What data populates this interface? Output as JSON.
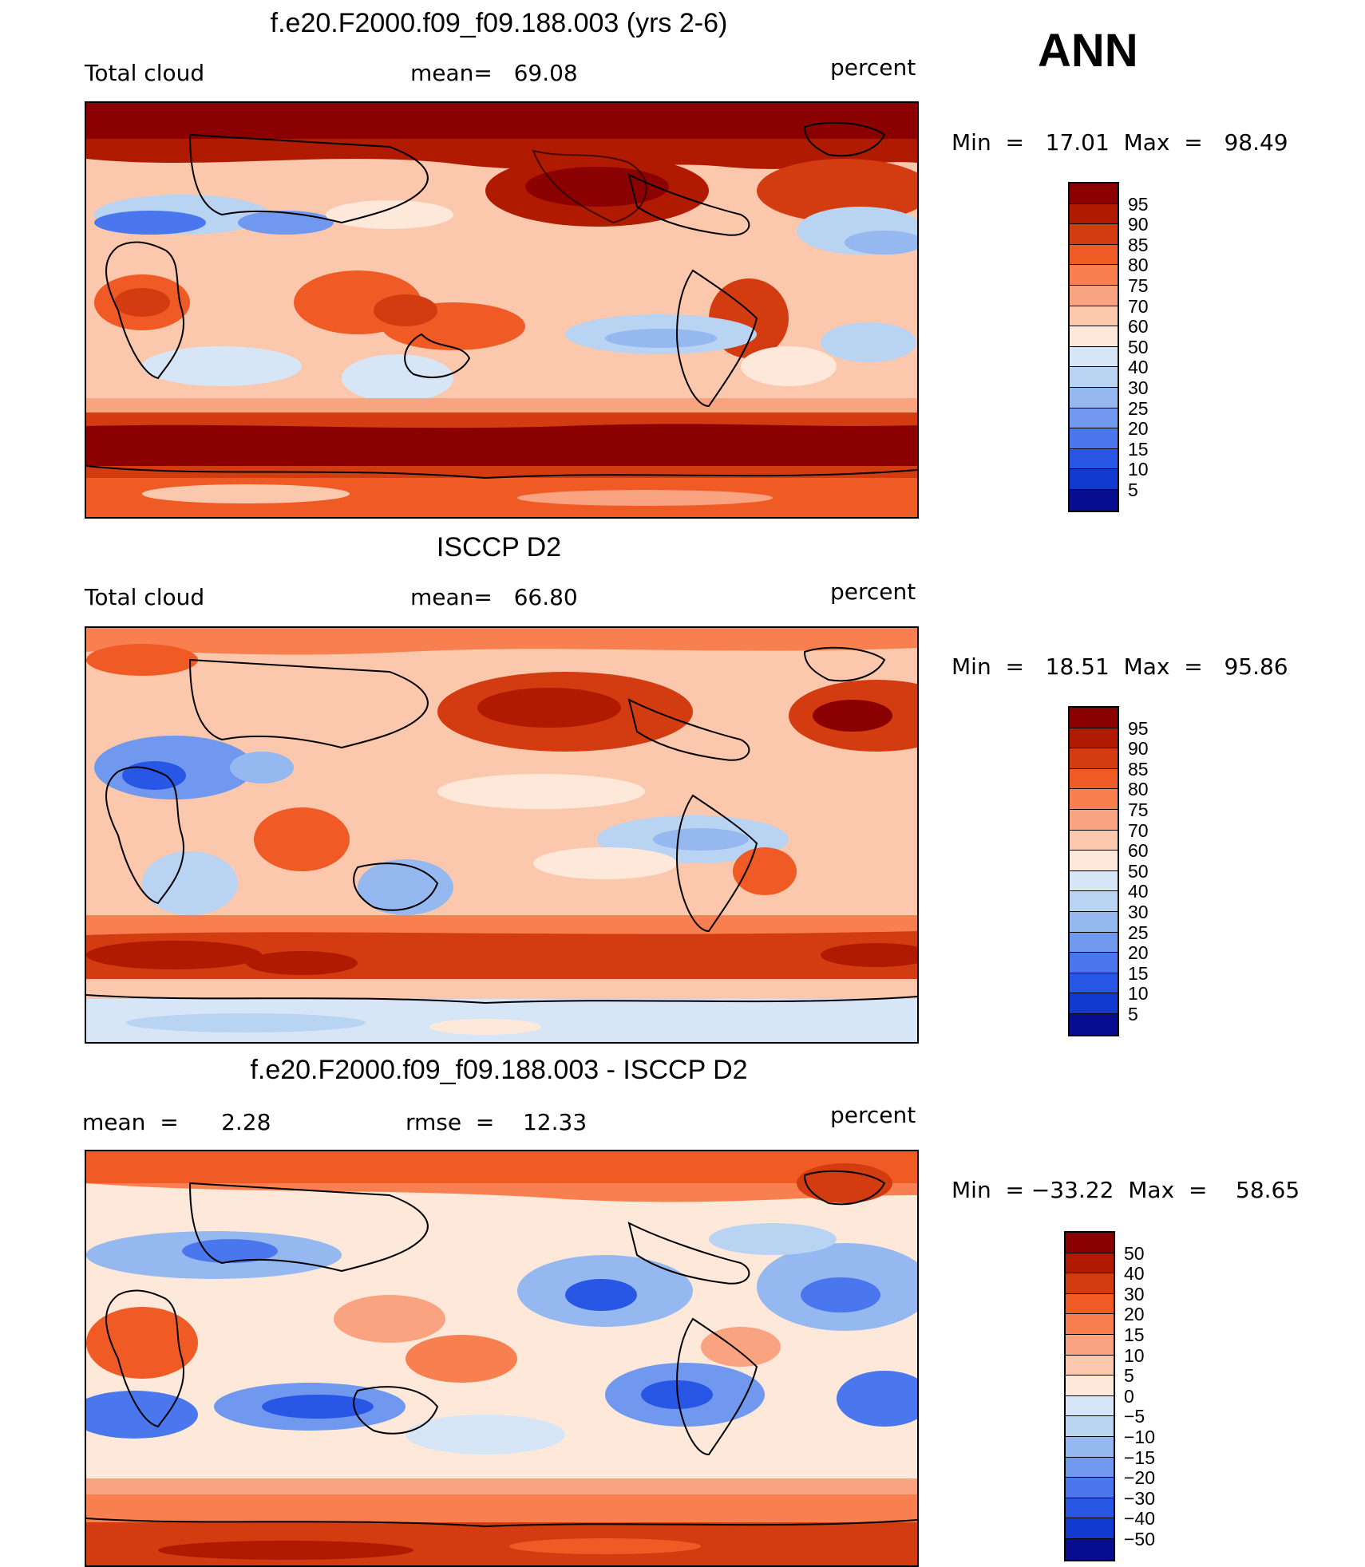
{
  "season": "ANN",
  "panels": [
    {
      "title": "f.e20.F2000.f09_f09.188.003 (yrs 2-6)",
      "left_label": "Total cloud",
      "center_label": "mean=   69.08",
      "right_label": "percent",
      "minmax": "Min  =   17.01  Max  =   98.49",
      "colorbar_labels": [
        "95",
        "90",
        "85",
        "80",
        "75",
        "70",
        "60",
        "50",
        "40",
        "30",
        "25",
        "20",
        "15",
        "10",
        "5"
      ],
      "palette": [
        "#8b0000",
        "#b01a00",
        "#d33b10",
        "#f05a24",
        "#f88050",
        "#faa381",
        "#fcc8ad",
        "#fde8da",
        "#d6e6f7",
        "#b9d3f3",
        "#95b8f0",
        "#6f98ee",
        "#4a77ee",
        "#2856e5",
        "#113ad0",
        "#060e8f"
      ]
    },
    {
      "title": "ISCCP D2",
      "left_label": "Total cloud",
      "center_label": "mean=   66.80",
      "right_label": "percent",
      "minmax": "Min  =   18.51  Max  =   95.86",
      "colorbar_labels": [
        "95",
        "90",
        "85",
        "80",
        "75",
        "70",
        "60",
        "50",
        "40",
        "30",
        "25",
        "20",
        "15",
        "10",
        "5"
      ],
      "palette": [
        "#8b0000",
        "#b01a00",
        "#d33b10",
        "#f05a24",
        "#f88050",
        "#faa381",
        "#fcc8ad",
        "#fde8da",
        "#d6e6f7",
        "#b9d3f3",
        "#95b8f0",
        "#6f98ee",
        "#4a77ee",
        "#2856e5",
        "#113ad0",
        "#060e8f"
      ]
    },
    {
      "title": "f.e20.F2000.f09_f09.188.003 - ISCCP D2",
      "left_label": "mean  =      2.28",
      "center_label": "rmse  =    12.33",
      "right_label": "percent",
      "minmax": "Min  = −33.22  Max  =    58.65",
      "colorbar_labels": [
        "50",
        "40",
        "30",
        "20",
        "15",
        "10",
        "5",
        "0",
        "−5",
        "−10",
        "−15",
        "−20",
        "−30",
        "−40",
        "−50"
      ],
      "palette": [
        "#8b0000",
        "#b01a00",
        "#d33b10",
        "#f05a24",
        "#f88050",
        "#faa381",
        "#fcc8ad",
        "#fde8da",
        "#d6e6f7",
        "#b9d3f3",
        "#95b8f0",
        "#6f98ee",
        "#4a77ee",
        "#2856e5",
        "#113ad0",
        "#060e8f"
      ]
    }
  ]
}
